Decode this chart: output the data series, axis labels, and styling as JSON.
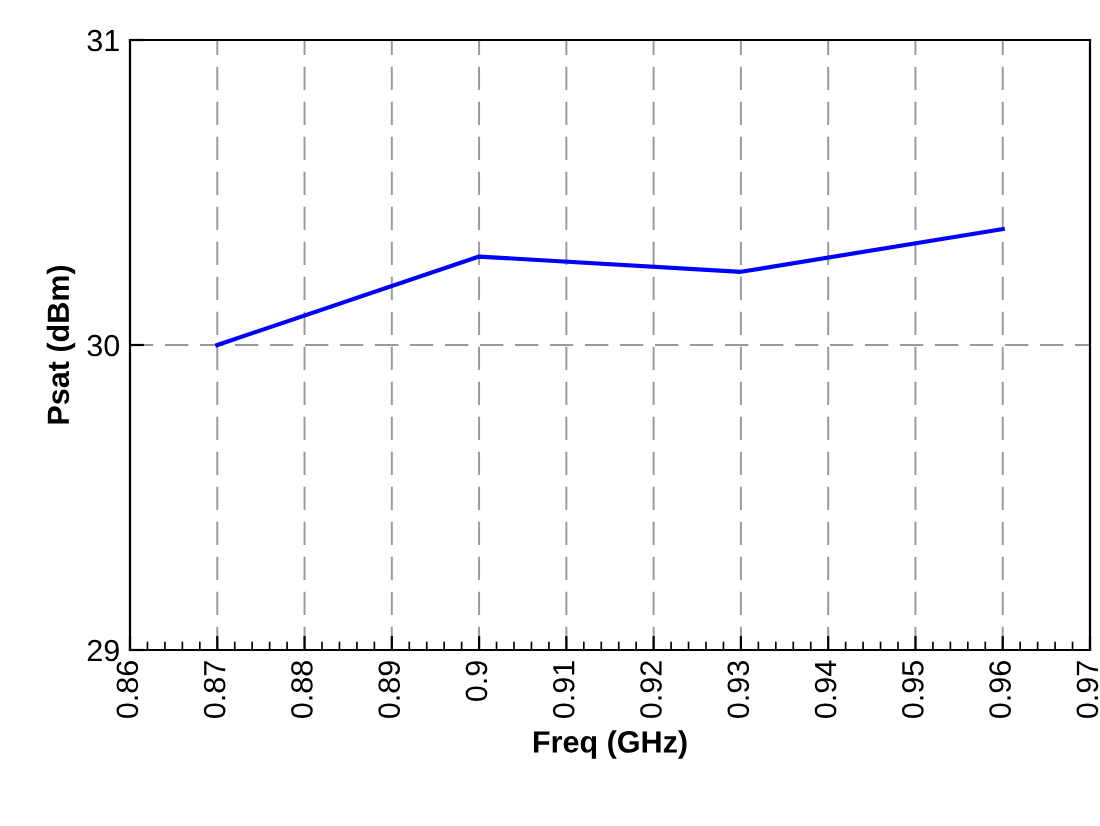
{
  "chart_data": {
    "type": "line",
    "xlabel": "Freq (GHz)",
    "ylabel": "Psat (dBm)",
    "x": [
      0.87,
      0.9,
      0.93,
      0.96
    ],
    "series": [
      {
        "color": "#0000ff",
        "values": [
          30.0,
          30.29,
          30.24,
          30.38
        ]
      }
    ],
    "xlim": [
      0.86,
      0.97
    ],
    "xticks": [
      0.86,
      0.87,
      0.88,
      0.89,
      0.9,
      0.91,
      0.92,
      0.93,
      0.94,
      0.95,
      0.96,
      0.97
    ],
    "ylim": [
      29,
      31
    ],
    "yticks": [
      29,
      30,
      31
    ],
    "grid": true,
    "legend": false,
    "marker": "none",
    "line_style": "solid"
  }
}
